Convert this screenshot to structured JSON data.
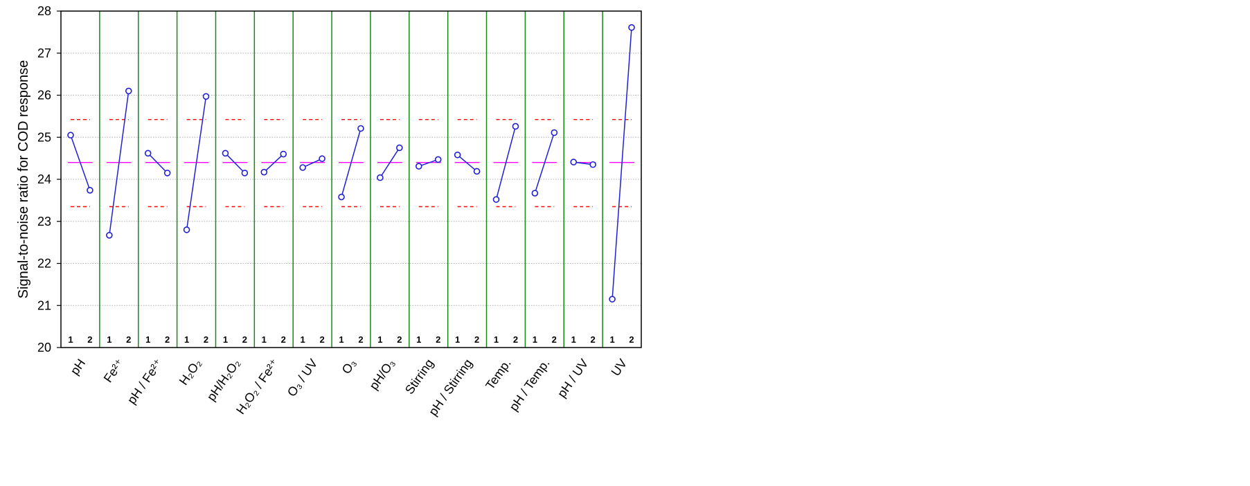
{
  "chart_data": {
    "type": "line",
    "title": "",
    "xlabel": "",
    "ylabel": "Signal-to-noise ratio for COD response",
    "ylim": [
      20,
      28
    ],
    "yticks": [
      20,
      21,
      22,
      23,
      24,
      25,
      26,
      27,
      28
    ],
    "grid": true,
    "levels": [
      "1",
      "2"
    ],
    "reference_lines": {
      "mean": 24.4,
      "upper": 25.42,
      "lower": 23.35
    },
    "factors": [
      {
        "label": "pH",
        "values": [
          25.05,
          23.74
        ]
      },
      {
        "label": "Fe²⁺",
        "values": [
          22.67,
          26.1
        ]
      },
      {
        "label": "pH / Fe²⁺",
        "values": [
          24.62,
          24.15
        ]
      },
      {
        "label": "H₂O₂",
        "values": [
          22.8,
          25.97
        ]
      },
      {
        "label": "pH/H₂O₂",
        "values": [
          24.62,
          24.15
        ]
      },
      {
        "label": "H₂O₂ / Fe²⁺",
        "values": [
          24.17,
          24.6
        ]
      },
      {
        "label": "O₃ / UV",
        "values": [
          24.28,
          24.49
        ]
      },
      {
        "label": "O₃",
        "values": [
          23.58,
          25.21
        ]
      },
      {
        "label": "pH/O₃",
        "values": [
          24.04,
          24.75
        ]
      },
      {
        "label": "Stirring",
        "values": [
          24.31,
          24.47
        ]
      },
      {
        "label": "pH / Stirring",
        "values": [
          24.58,
          24.19
        ]
      },
      {
        "label": "Temp.",
        "values": [
          23.52,
          25.26
        ]
      },
      {
        "label": "pH / Temp.",
        "values": [
          23.67,
          25.11
        ]
      },
      {
        "label": "pH / UV",
        "values": [
          24.41,
          24.35
        ]
      },
      {
        "label": "UV",
        "values": [
          21.15,
          27.61
        ]
      }
    ]
  },
  "colors": {
    "series": "#1f1fd6",
    "separator": "#138a13",
    "mean_line": "#ff00ff",
    "limit_line": "#ff0000",
    "grid": "#b0b0b0"
  }
}
